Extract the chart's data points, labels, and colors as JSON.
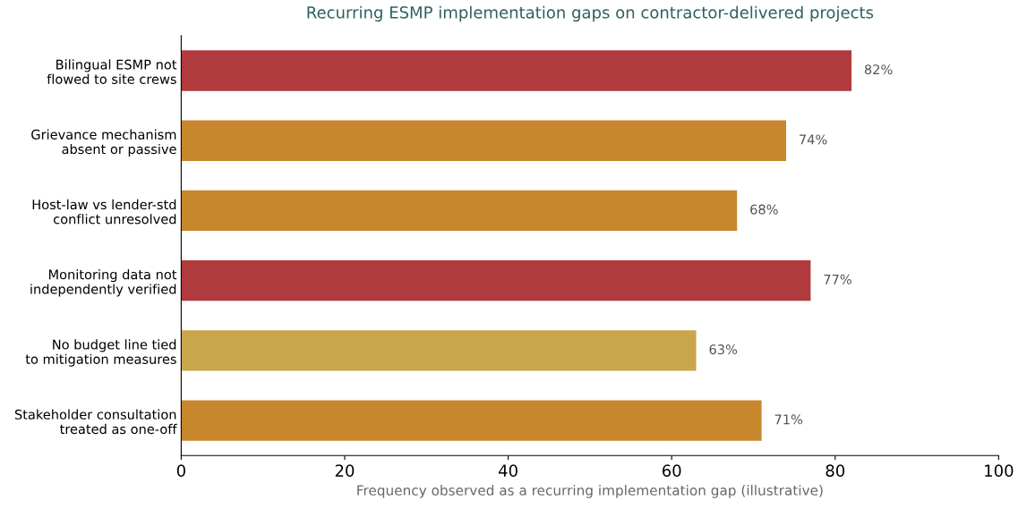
{
  "chart_data": {
    "type": "bar",
    "orientation": "horizontal",
    "title": "Recurring ESMP implementation gaps on contractor-delivered projects",
    "xlabel": "Frequency observed as a recurring implementation gap (illustrative)",
    "categories": [
      "Bilingual ESMP not\nflowed to site crews",
      "Grievance mechanism\nabsent or passive",
      "Host-law vs lender-std\nconflict unresolved",
      "Monitoring data not\nindependently verified",
      "No budget line tied\nto mitigation measures",
      "Stakeholder consultation\ntreated as one-off"
    ],
    "values": [
      82,
      74,
      68,
      77,
      63,
      71
    ],
    "colors": [
      "#b03a3c",
      "#c8862c",
      "#c8862c",
      "#b03a3c",
      "#c9a64b",
      "#c8862c"
    ],
    "value_labels": [
      "82%",
      "74%",
      "68%",
      "77%",
      "63%",
      "71%"
    ],
    "xlim": [
      0,
      100
    ],
    "xticks": [
      0,
      20,
      40,
      60,
      80,
      100
    ],
    "grid": false,
    "legend": false
  }
}
